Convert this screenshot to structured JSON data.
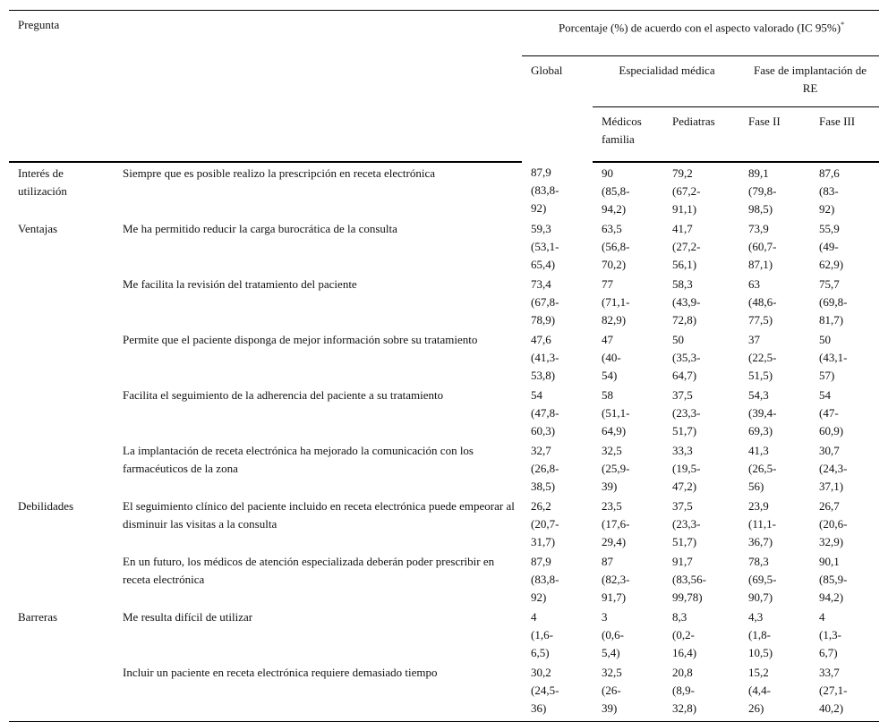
{
  "header": {
    "pregunta": "Pregunta",
    "porcentaje": "Porcentaje (%) de acuerdo con el aspecto valorado (IC 95%)",
    "porcentaje_mark": "*",
    "global": "Global",
    "especialidad": "Especialidad médica",
    "fase": "Fase de implantación de RE",
    "medicos": "Médicos familia",
    "pediatras": "Pediatras",
    "fase2": "Fase II",
    "fase3": "Fase III"
  },
  "rows": [
    {
      "group": "Interés de utilización",
      "question": "Siempre que es posible realizo la prescripción en receta electrónica",
      "cells": [
        [
          "87,9",
          "(83,8-92)"
        ],
        [
          "90",
          "(85,8-94,2)"
        ],
        [
          "79,2",
          "(67,2-91,1)"
        ],
        [
          "89,1",
          "(79,8-98,5)"
        ],
        [
          "87,6",
          "(83-92)"
        ]
      ]
    },
    {
      "group": "Ventajas",
      "question": "Me ha permitido reducir la carga burocrática de la consulta",
      "cells": [
        [
          "59,3",
          "(53,1-65,4)"
        ],
        [
          "63,5",
          "(56,8-70,2)"
        ],
        [
          "41,7",
          "(27,2-56,1)"
        ],
        [
          "73,9",
          "(60,7-87,1)"
        ],
        [
          "55,9",
          "(49-62,9)"
        ]
      ]
    },
    {
      "group": "",
      "question": "Me facilita la revisión del tratamiento del paciente",
      "cells": [
        [
          "73,4",
          "(67,8-78,9)"
        ],
        [
          "77",
          "(71,1-82,9)"
        ],
        [
          "58,3",
          "(43,9-72,8)"
        ],
        [
          "63",
          "(48,6-77,5)"
        ],
        [
          "75,7",
          "(69,8-81,7)"
        ]
      ]
    },
    {
      "group": "",
      "question": "Permite que el paciente disponga de mejor información sobre su tratamiento",
      "cells": [
        [
          "47,6",
          "(41,3-53,8)"
        ],
        [
          "47",
          "(40-54)"
        ],
        [
          "50",
          "(35,3-64,7)"
        ],
        [
          "37",
          "(22,5-51,5)"
        ],
        [
          "50",
          "(43,1-57)"
        ]
      ]
    },
    {
      "group": "",
      "question": "Facilita el seguimiento de la adherencia del paciente a su tratamiento",
      "cells": [
        [
          "54",
          "(47,8-60,3)"
        ],
        [
          "58",
          "(51,1-64,9)"
        ],
        [
          "37,5",
          "(23,3-51,7)"
        ],
        [
          "54,3",
          "(39,4-69,3)"
        ],
        [
          "54",
          "(47-60,9)"
        ]
      ]
    },
    {
      "group": "",
      "question": "La implantación de receta electrónica ha mejorado la comunicación con los farmacéuticos de la zona",
      "cells": [
        [
          "32,7",
          "(26,8-38,5)"
        ],
        [
          "32,5",
          "(25,9-39)"
        ],
        [
          "33,3",
          "(19,5-47,2)"
        ],
        [
          "41,3",
          "(26,5-56)"
        ],
        [
          "30,7",
          "(24,3-37,1)"
        ]
      ]
    },
    {
      "group": "Debilidades",
      "question": "El seguimiento clínico del paciente incluido en receta electrónica puede empeorar al disminuir las visitas a la consulta",
      "cells": [
        [
          "26,2",
          "(20,7-31,7)"
        ],
        [
          "23,5",
          "(17,6-29,4)"
        ],
        [
          "37,5",
          "(23,3-51,7)"
        ],
        [
          "23,9",
          "(11,1-36,7)"
        ],
        [
          "26,7",
          "(20,6-32,9)"
        ]
      ]
    },
    {
      "group": "",
      "question": "En un futuro, los médicos de atención especializada deberán poder prescribir en receta electrónica",
      "cells": [
        [
          "87,9",
          "(83,8-92)"
        ],
        [
          "87",
          "(82,3-91,7)"
        ],
        [
          "91,7",
          "(83,56-99,78)"
        ],
        [
          "78,3",
          "(69,5-90,7)"
        ],
        [
          "90,1",
          "(85,9-94,2)"
        ]
      ]
    },
    {
      "group": "Barreras",
      "question": "Me resulta difícil de utilizar",
      "cells": [
        [
          "4",
          "(1,6-6,5)"
        ],
        [
          "3",
          "(0,6-5,4)"
        ],
        [
          "8,3",
          "(0,2-16,4)"
        ],
        [
          "4,3",
          "(1,8-10,5)"
        ],
        [
          "4",
          "(1,3-6,7)"
        ]
      ]
    },
    {
      "group": "",
      "question": "Incluir un paciente en receta electrónica requiere demasiado tiempo",
      "cells": [
        [
          "30,2",
          "(24,5-36)"
        ],
        [
          "32,5",
          "(26-39)"
        ],
        [
          "20,8",
          "(8,9-32,8)"
        ],
        [
          "15,2",
          "(4,4-26)"
        ],
        [
          "33,7",
          "(27,1-40,2)"
        ]
      ]
    }
  ]
}
